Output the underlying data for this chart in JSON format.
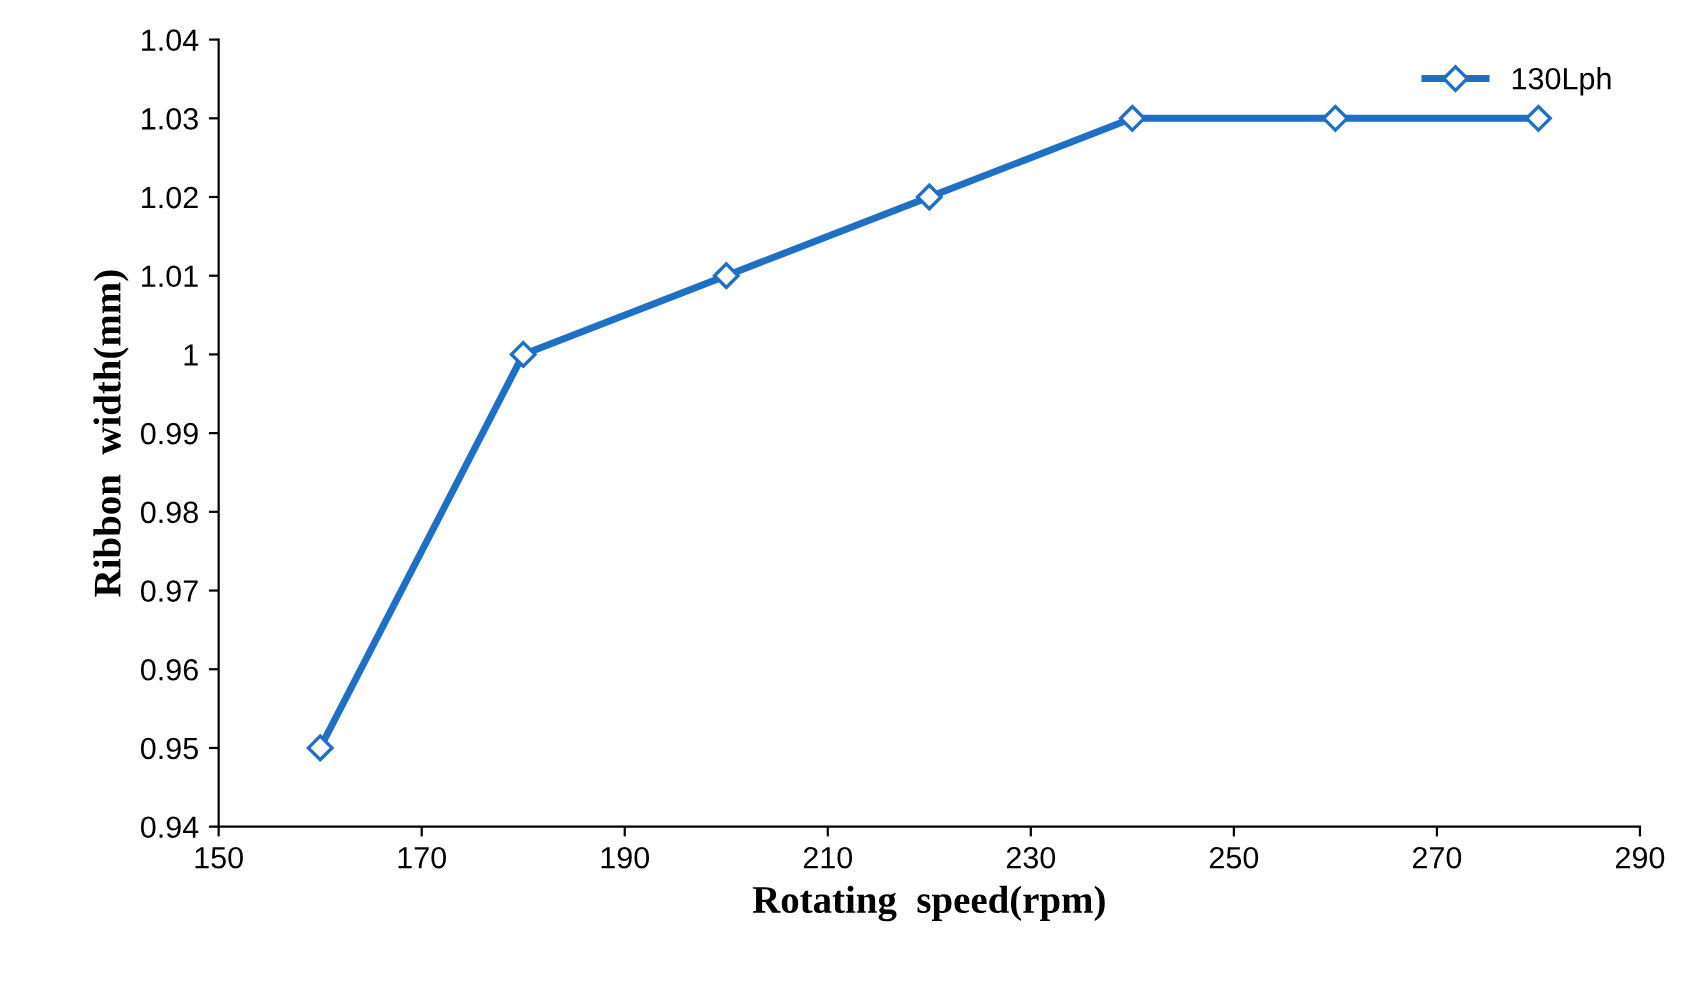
{
  "chart_data": {
    "type": "line",
    "xlabel": "Rotating  speed(rpm)",
    "ylabel": "Ribbon  width(mm)",
    "x": [
      160,
      180,
      200,
      220,
      240,
      260,
      280
    ],
    "series": [
      {
        "name": "130Lph",
        "color": "#1f6fc5",
        "values": [
          0.95,
          1,
          1.01,
          1.02,
          1.03,
          1.03,
          1.03
        ]
      }
    ],
    "xlim": [
      150,
      290
    ],
    "xticks": [
      150,
      170,
      190,
      210,
      230,
      250,
      270,
      290
    ],
    "ylim": [
      0.94,
      1.04
    ],
    "yticks": [
      0.94,
      0.95,
      0.96,
      0.97,
      0.98,
      0.99,
      1,
      1.01,
      1.02,
      1.03,
      1.04
    ],
    "grid": false,
    "legend": "top right",
    "marker": "diamond",
    "line_style": "solid"
  }
}
